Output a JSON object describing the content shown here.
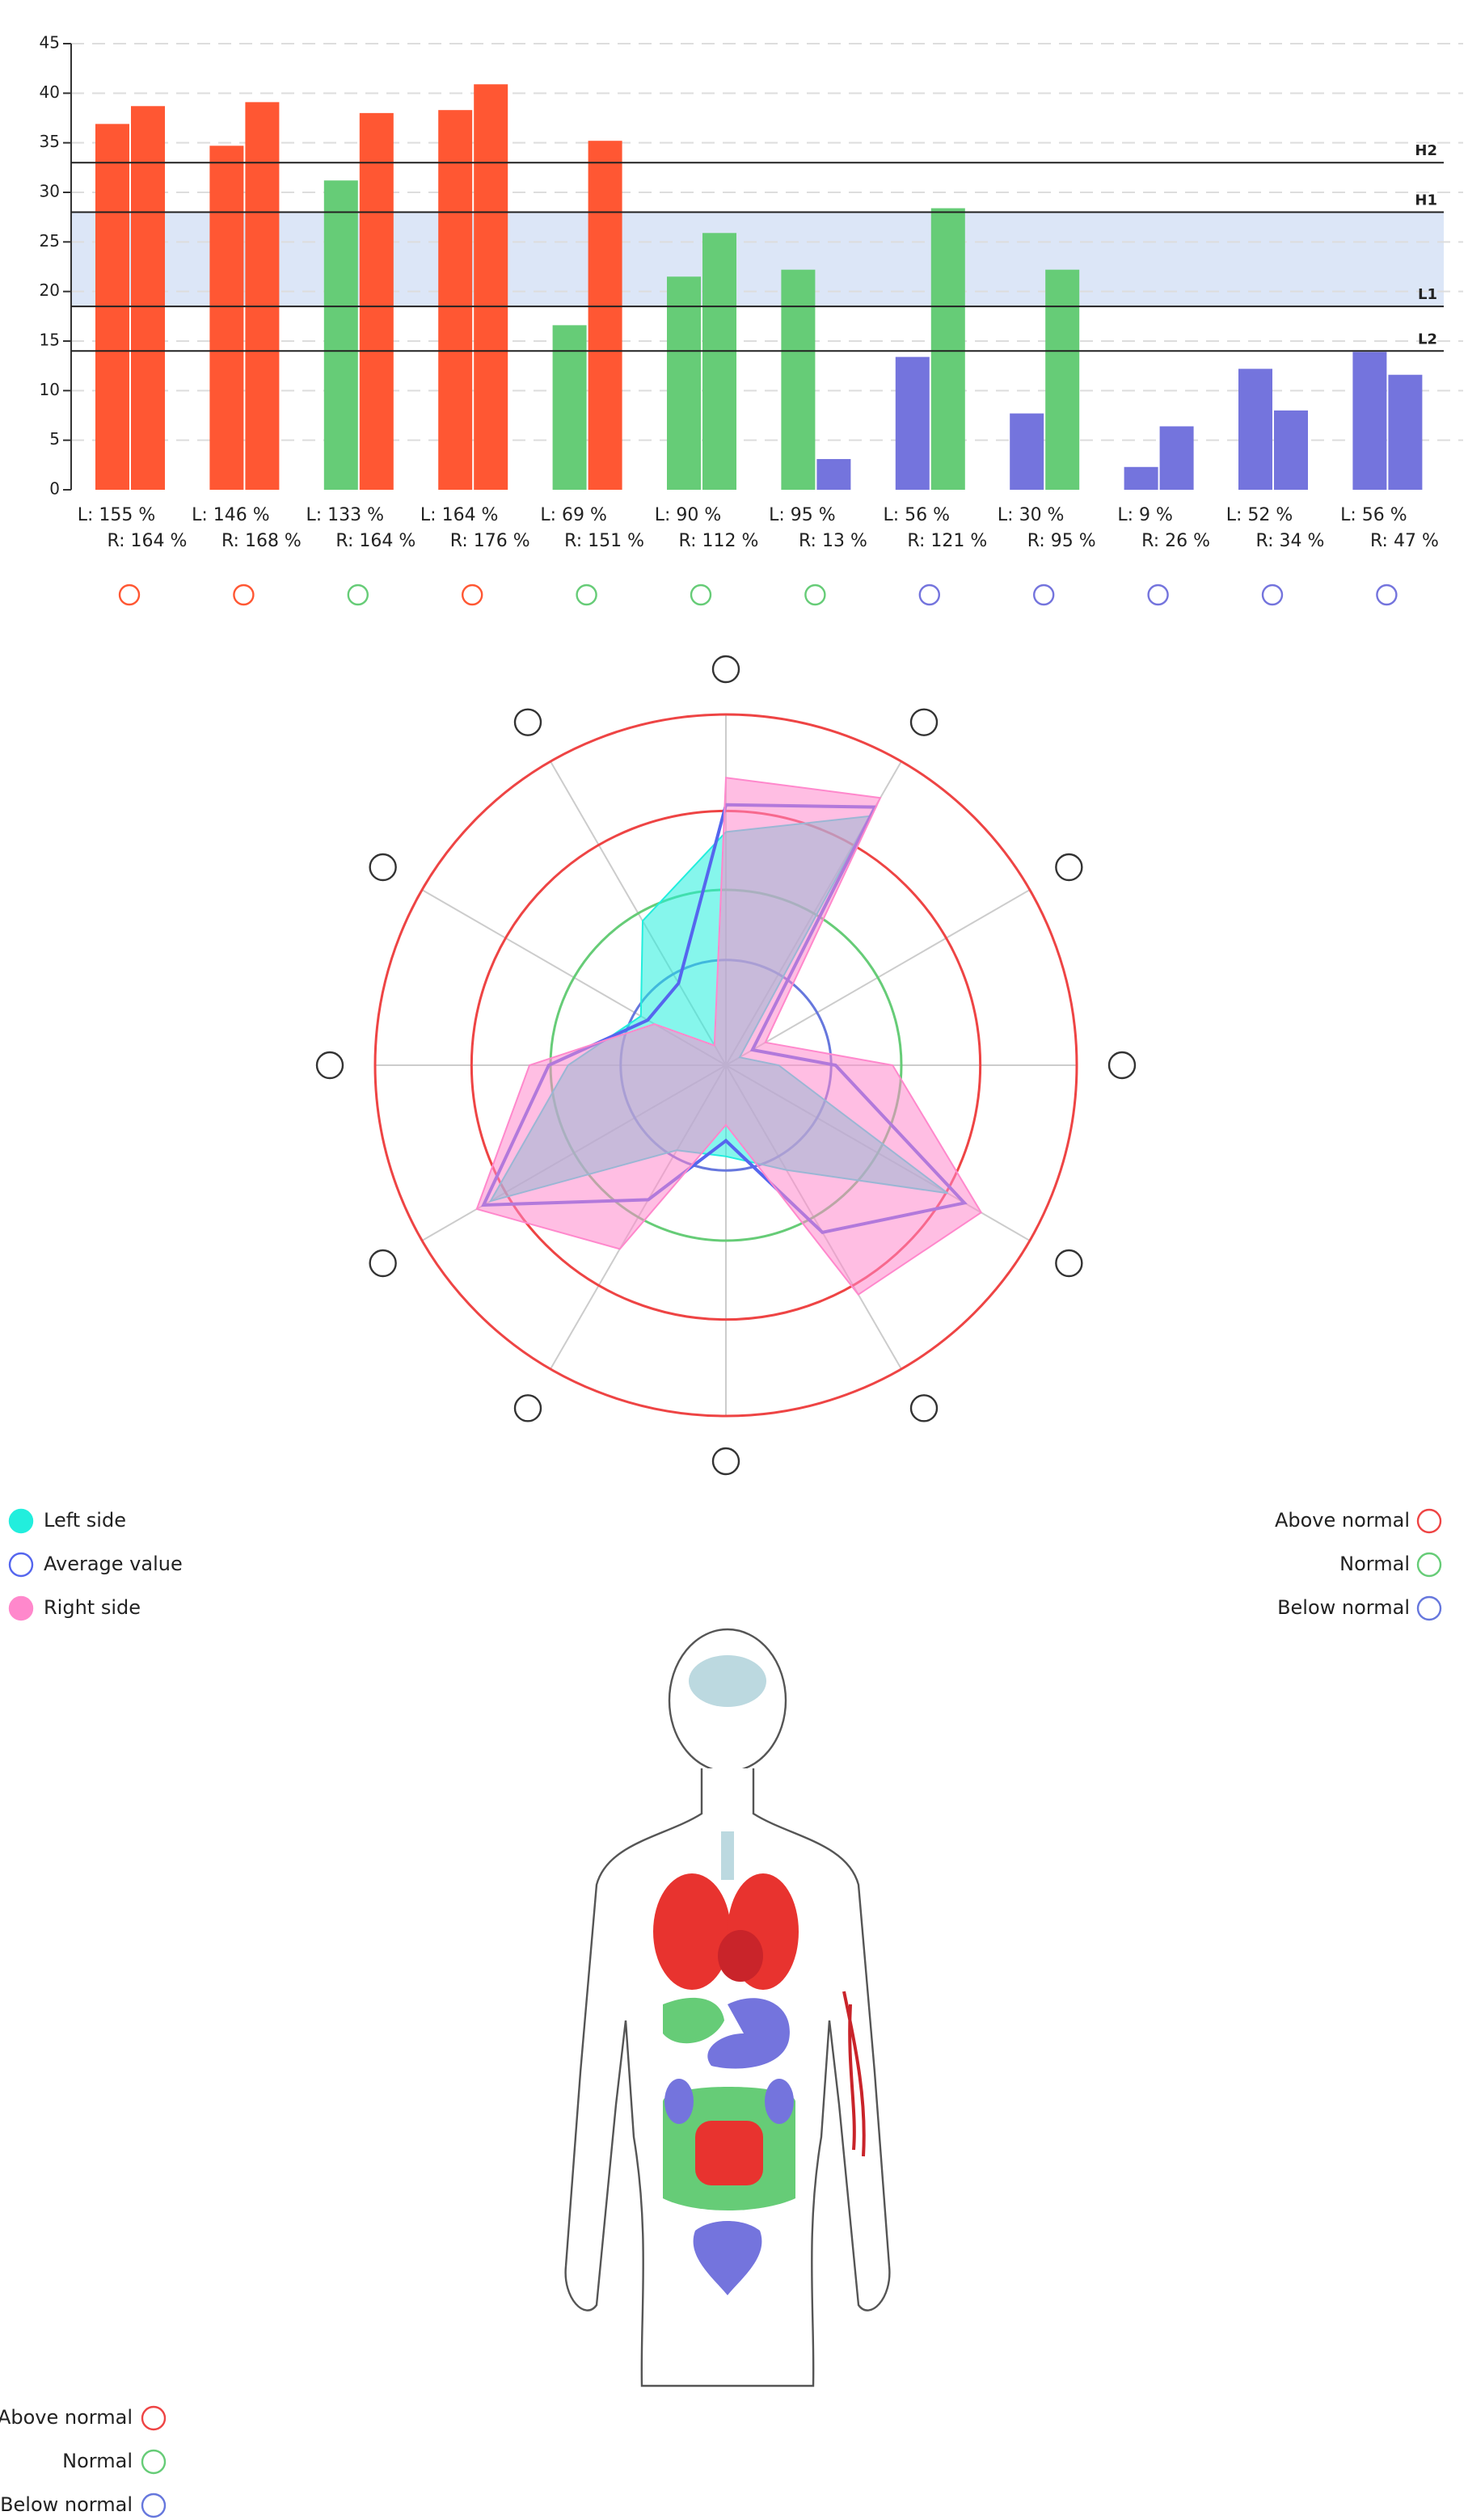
{
  "chart_data": [
    {
      "type": "bar",
      "ylim": [
        0,
        45
      ],
      "yticks": [
        0,
        5,
        10,
        15,
        20,
        25,
        30,
        35,
        40,
        45
      ],
      "grid": true,
      "series": [
        {
          "colors": [
            "#ff5733",
            "#ff5733",
            "#66cc77",
            "#ff5733",
            "#66cc77",
            "#66cc77",
            "#66cc77",
            "#7474dd",
            "#7474dd",
            "#7474dd",
            "#7474dd",
            "#7474dd"
          ],
          "values": [
            36.9,
            34.7,
            31.2,
            38.3,
            16.6,
            21.5,
            22.2,
            13.4,
            7.7,
            2.3,
            12.2,
            13.9
          ],
          "labels": [
            "L: 155 %",
            "L: 146 %",
            "L: 133 %",
            "L: 164 %",
            "L: 69 %",
            "L: 90 %",
            "L: 95 %",
            "L: 56 %",
            "L: 30 %",
            "L: 9 %",
            "L: 52 %",
            "L: 56 %"
          ]
        },
        {
          "colors": [
            "#ff5733",
            "#ff5733",
            "#ff5733",
            "#ff5733",
            "#ff5733",
            "#66cc77",
            "#7474dd",
            "#66cc77",
            "#66cc77",
            "#7474dd",
            "#7474dd",
            "#7474dd"
          ],
          "values": [
            38.7,
            39.1,
            38.0,
            40.9,
            35.2,
            25.9,
            3.1,
            28.4,
            22.2,
            6.4,
            8.0,
            11.6
          ],
          "labels": [
            "R: 164 %",
            "R: 168 %",
            "R: 164 %",
            "R: 176 %",
            "R: 151 %",
            "R: 112 %",
            "R: 13 %",
            "R: 121 %",
            "R: 95 %",
            "R: 26 %",
            "R: 34 %",
            "R: 47 %"
          ]
        }
      ],
      "ref_lines": [
        {
          "label": "H2",
          "value": 33
        },
        {
          "label": "H1",
          "value": 28
        },
        {
          "label": "L1",
          "value": 18.5
        },
        {
          "label": "L2",
          "value": 14
        }
      ],
      "band": {
        "values": [
          18.5,
          28
        ],
        "color": "#dce6f7"
      }
    },
    {
      "type": "radar",
      "rlim": [
        0,
        200
      ],
      "rings": [
        {
          "value": 60,
          "color": "#6677dd"
        },
        {
          "value": 100,
          "color": "#66cc77"
        },
        {
          "value": 145,
          "color": "#ee4444"
        },
        {
          "value": 200,
          "color": "#ee4444"
        }
      ],
      "series": [
        {
          "name": "Left side",
          "color": "#22eedd",
          "filled": true,
          "values": [
            133,
            164,
            9,
            30,
            146,
            69,
            52,
            56,
            155,
            90,
            56,
            95
          ]
        },
        {
          "name": "Average value",
          "color": "#5566ee",
          "filled": false,
          "values": [
            148.5,
            170,
            17.5,
            62.5,
            157,
            110,
            43,
            88.5,
            159.5,
            101,
            51.5,
            54
          ]
        },
        {
          "name": "Right side",
          "color": "#ff88cc",
          "filled": true,
          "values": [
            164,
            176,
            26,
            95,
            168,
            151,
            34,
            121,
            164,
            112,
            47,
            13
          ]
        }
      ],
      "status_legend": [
        {
          "label": "Above normal",
          "color": "#ee4444"
        },
        {
          "label": "Normal",
          "color": "#66cc77"
        },
        {
          "label": "Below normal",
          "color": "#6677dd"
        }
      ]
    }
  ],
  "body_legend": [
    {
      "label": "Above normal",
      "color": "#ee4444"
    },
    {
      "label": "Normal",
      "color": "#66cc77"
    },
    {
      "label": "Below normal",
      "color": "#6677dd"
    }
  ]
}
